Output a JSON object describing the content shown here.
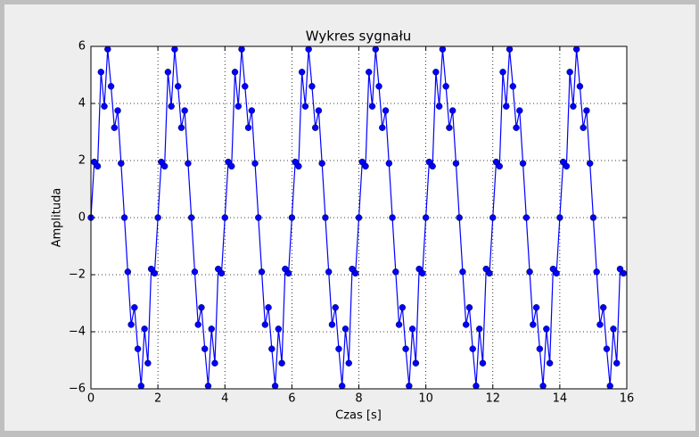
{
  "chart_data": {
    "type": "line",
    "title": "Wykres sygnału",
    "x_label": "Czas [s]",
    "y_label": "Amplituda",
    "xlim": [
      0,
      16
    ],
    "ylim": [
      -6,
      6
    ],
    "xticks": [
      0,
      2,
      4,
      6,
      8,
      10,
      12,
      14,
      16
    ],
    "yticks": [
      {
        "value": -6,
        "label": "−6"
      },
      {
        "value": -4,
        "label": "−4"
      },
      {
        "value": -2,
        "label": "−2"
      },
      0,
      2,
      4,
      6
    ],
    "grid": true,
    "x": [
      0,
      0.1,
      0.2,
      0.3,
      0.4,
      0.5,
      0.6,
      0.7,
      0.8,
      0.9,
      1,
      1.1,
      1.2,
      1.3,
      1.4,
      1.5,
      1.6,
      1.7,
      1.8,
      1.9,
      2,
      2.1,
      2.2,
      2.3,
      2.4,
      2.5,
      2.6,
      2.7,
      2.8,
      2.9,
      3,
      3.1,
      3.2,
      3.3,
      3.4,
      3.5,
      3.6,
      3.7,
      3.8,
      3.9,
      4,
      4.1,
      4.2,
      4.3,
      4.4,
      4.5,
      4.6,
      4.7,
      4.8,
      4.9,
      5,
      5.1,
      5.2,
      5.3,
      5.4,
      5.5,
      5.6,
      5.7,
      5.8,
      5.9,
      6,
      6.1,
      6.2,
      6.3,
      6.4,
      6.5,
      6.6,
      6.7,
      6.8,
      6.9,
      7,
      7.1,
      7.2,
      7.3,
      7.4,
      7.5,
      7.6,
      7.7,
      7.8,
      7.9,
      8,
      8.1,
      8.2,
      8.3,
      8.4,
      8.5,
      8.6,
      8.7,
      8.8,
      8.9,
      9,
      9.1,
      9.2,
      9.3,
      9.4,
      9.5,
      9.6,
      9.7,
      9.8,
      9.9,
      10,
      10.1,
      10.2,
      10.3,
      10.4,
      10.5,
      10.6,
      10.7,
      10.8,
      10.9,
      11,
      11.1,
      11.2,
      11.3,
      11.4,
      11.5,
      11.6,
      11.7,
      11.8,
      11.9,
      12,
      12.1,
      12.2,
      12.3,
      12.4,
      12.5,
      12.6,
      12.7,
      12.8,
      12.9,
      13,
      13.1,
      13.2,
      13.3,
      13.4,
      13.5,
      13.6,
      13.7,
      13.8,
      13.9,
      14,
      14.1,
      14.2,
      14.3,
      14.4,
      14.5,
      14.6,
      14.7,
      14.8,
      14.9,
      15,
      15.1,
      15.2,
      15.3,
      15.4,
      15.5,
      15.6,
      15.7,
      15.8,
      15.9
    ],
    "series": [
      {
        "color": "#0000ff",
        "values": [
          0,
          1.95,
          1.8,
          5.1,
          3.9,
          5.9,
          4.6,
          3.15,
          3.75,
          1.9,
          0,
          -1.9,
          -3.75,
          -3.15,
          -4.6,
          -5.9,
          -3.9,
          -5.1,
          -1.8,
          -1.95,
          0,
          1.95,
          1.8,
          5.1,
          3.9,
          5.9,
          4.6,
          3.15,
          3.75,
          1.9,
          0,
          -1.9,
          -3.75,
          -3.15,
          -4.6,
          -5.9,
          -3.9,
          -5.1,
          -1.8,
          -1.95,
          0,
          1.95,
          1.8,
          5.1,
          3.9,
          5.9,
          4.6,
          3.15,
          3.75,
          1.9,
          0,
          -1.9,
          -3.75,
          -3.15,
          -4.6,
          -5.9,
          -3.9,
          -5.1,
          -1.8,
          -1.95,
          0,
          1.95,
          1.8,
          5.1,
          3.9,
          5.9,
          4.6,
          3.15,
          3.75,
          1.9,
          0,
          -1.9,
          -3.75,
          -3.15,
          -4.6,
          -5.9,
          -3.9,
          -5.1,
          -1.8,
          -1.95,
          0,
          1.95,
          1.8,
          5.1,
          3.9,
          5.9,
          4.6,
          3.15,
          3.75,
          1.9,
          0,
          -1.9,
          -3.75,
          -3.15,
          -4.6,
          -5.9,
          -3.9,
          -5.1,
          -1.8,
          -1.95,
          0,
          1.95,
          1.8,
          5.1,
          3.9,
          5.9,
          4.6,
          3.15,
          3.75,
          1.9,
          0,
          -1.9,
          -3.75,
          -3.15,
          -4.6,
          -5.9,
          -3.9,
          -5.1,
          -1.8,
          -1.95,
          0,
          1.95,
          1.8,
          5.1,
          3.9,
          5.9,
          4.6,
          3.15,
          3.75,
          1.9,
          0,
          -1.9,
          -3.75,
          -3.15,
          -4.6,
          -5.9,
          -3.9,
          -5.1,
          -1.8,
          -1.95,
          0,
          1.95,
          1.8,
          5.1,
          3.9,
          5.9,
          4.6,
          3.15,
          3.75,
          1.9,
          0,
          -1.9,
          -3.75,
          -3.15,
          -4.6,
          -5.9,
          -3.9,
          -5.1,
          -1.8,
          -1.95
        ]
      }
    ]
  }
}
